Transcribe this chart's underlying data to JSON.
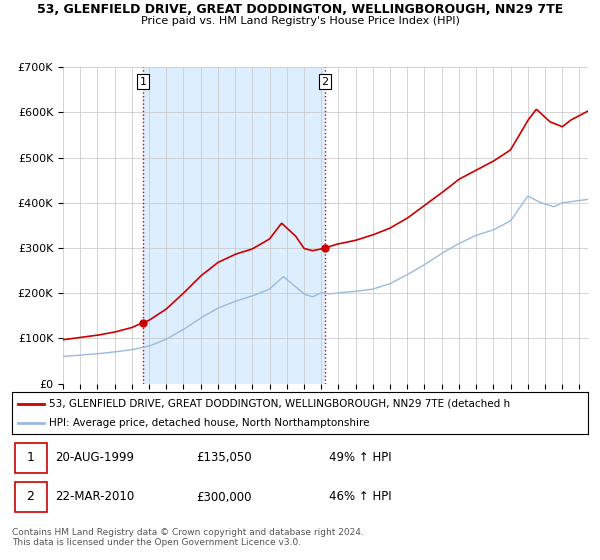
{
  "title": "53, GLENFIELD DRIVE, GREAT DODDINGTON, WELLINGBOROUGH, NN29 7TE",
  "subtitle": "Price paid vs. HM Land Registry's House Price Index (HPI)",
  "legend_line1": "53, GLENFIELD DRIVE, GREAT DODDINGTON, WELLINGBOROUGH, NN29 7TE (detached h",
  "legend_line2": "HPI: Average price, detached house, North Northamptonshire",
  "annotation1_date": "20-AUG-1999",
  "annotation1_price": "£135,050",
  "annotation1_hpi": "49% ↑ HPI",
  "annotation2_date": "22-MAR-2010",
  "annotation2_price": "£300,000",
  "annotation2_hpi": "46% ↑ HPI",
  "footnote": "Contains HM Land Registry data © Crown copyright and database right 2024.\nThis data is licensed under the Open Government Licence v3.0.",
  "line1_color": "#cc0000",
  "line2_color": "#99bbdd",
  "shade_color": "#ddeeff",
  "background_color": "#ffffff",
  "grid_color": "#cccccc",
  "vline_color": "#cc0000",
  "ylim": [
    0,
    700000
  ],
  "yticks": [
    0,
    100000,
    200000,
    300000,
    400000,
    500000,
    600000,
    700000
  ],
  "sale1_x": 1999.64,
  "sale1_y": 135050,
  "sale2_x": 2010.22,
  "sale2_y": 300000,
  "xmin": 1995.0,
  "xmax": 2025.5
}
